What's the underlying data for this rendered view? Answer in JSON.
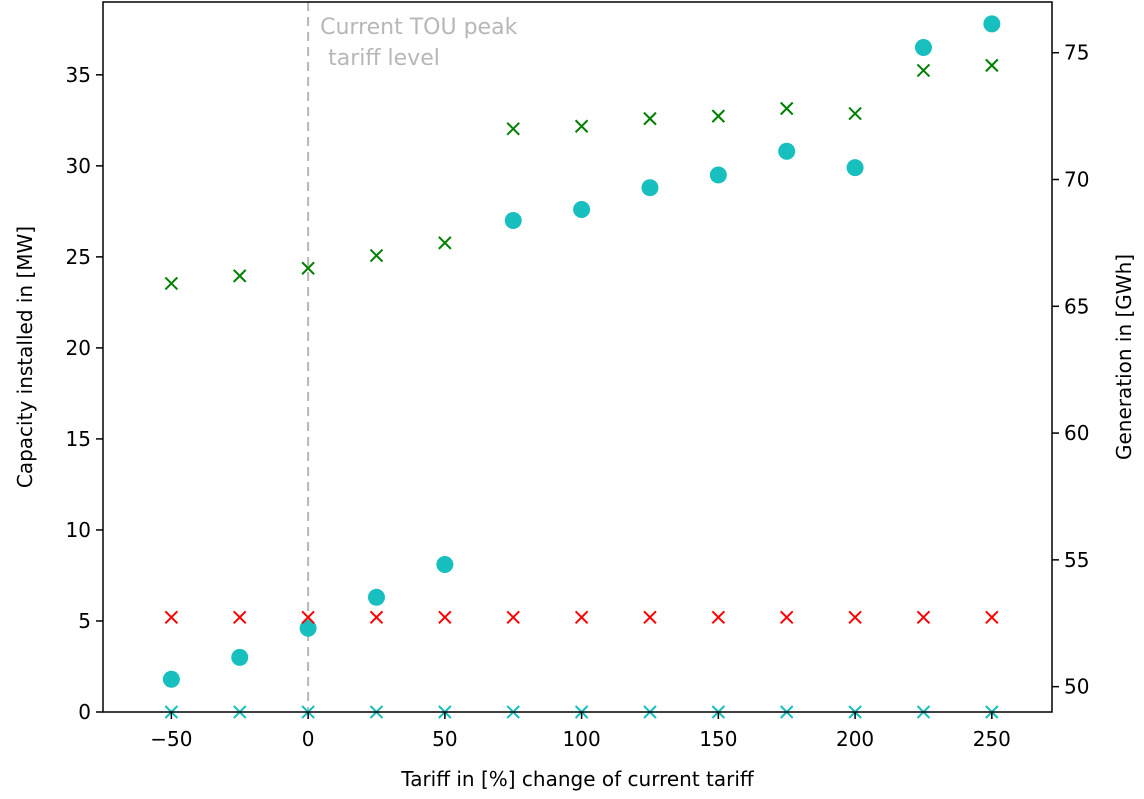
{
  "chart_data": {
    "type": "scatter",
    "title": "",
    "xlabel": "Tariff in [%] change of current tariff",
    "ylabel_left": "Capacity installed in [MW]",
    "ylabel_right": "Generation in [GWh]",
    "xlim": [
      -75,
      272
    ],
    "ylim_left": [
      0,
      39
    ],
    "ylim_right": [
      49,
      77
    ],
    "x_ticks": [
      -50,
      0,
      50,
      100,
      150,
      200,
      250
    ],
    "x_tick_labels": [
      "−50",
      "0",
      "50",
      "100",
      "150",
      "200",
      "250"
    ],
    "y_left_ticks": [
      0,
      5,
      10,
      15,
      20,
      25,
      30,
      35
    ],
    "y_right_ticks": [
      50,
      55,
      60,
      65,
      70,
      75
    ],
    "grid": false,
    "legend": "none",
    "annotation": {
      "lines": [
        "Current TOU peak",
        "tariff level"
      ],
      "x": 0,
      "line_style": "dashed",
      "color": "#b7b7b7"
    },
    "x": [
      -50,
      -25,
      0,
      25,
      50,
      75,
      100,
      125,
      150,
      175,
      200,
      225,
      250
    ],
    "series": [
      {
        "axis": "left",
        "marker": "circle",
        "color": "#17bfbf",
        "values": [
          1.8,
          3.0,
          4.6,
          6.3,
          8.1,
          27.0,
          27.6,
          28.8,
          29.5,
          30.8,
          29.9,
          36.5,
          37.8
        ]
      },
      {
        "axis": "left",
        "marker": "x",
        "color": "#ff0000",
        "values": [
          5.2,
          5.2,
          5.2,
          5.2,
          5.2,
          5.2,
          5.2,
          5.2,
          5.2,
          5.2,
          5.2,
          5.2,
          5.2
        ]
      },
      {
        "axis": "left",
        "marker": "x",
        "color": "#17bfbf",
        "values": [
          0,
          0,
          0,
          0,
          0,
          0,
          0,
          0,
          0,
          0,
          0,
          0,
          0
        ]
      },
      {
        "axis": "right",
        "marker": "x",
        "color": "#008000",
        "values": [
          65.9,
          66.2,
          66.5,
          67.0,
          67.5,
          72.0,
          72.1,
          72.4,
          72.5,
          72.8,
          72.6,
          74.3,
          74.5
        ]
      }
    ]
  }
}
